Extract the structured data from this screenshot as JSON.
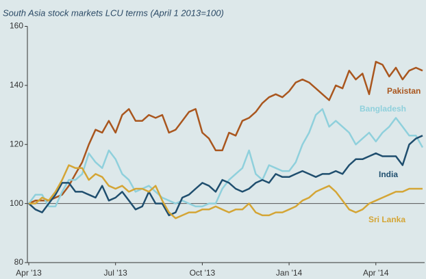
{
  "chart_data": {
    "type": "line",
    "title": "South Asia stock markets LCU terms (April 1 2013=100)",
    "categories": [
      "Apr '13",
      null,
      null,
      null,
      null,
      null,
      null,
      null,
      null,
      null,
      null,
      null,
      null,
      "Jul '13",
      null,
      null,
      null,
      null,
      null,
      null,
      null,
      null,
      null,
      null,
      null,
      null,
      "Oct '13",
      null,
      null,
      null,
      null,
      null,
      null,
      null,
      null,
      null,
      null,
      null,
      null,
      "Jan '14",
      null,
      null,
      null,
      null,
      null,
      null,
      null,
      null,
      null,
      null,
      null,
      null,
      "Apr '14",
      null,
      null,
      null,
      null,
      null,
      null,
      null
    ],
    "ylim": [
      80,
      160
    ],
    "yticks": [
      80,
      100,
      120,
      140,
      160
    ],
    "reference_line": 100,
    "series": [
      {
        "name": "Pakistan",
        "color": "#a9561e",
        "values": [
          100,
          101,
          101,
          101,
          102,
          103,
          106,
          110,
          114,
          120,
          125,
          124,
          128,
          124,
          130,
          132,
          128,
          128,
          130,
          129,
          130,
          124,
          125,
          128,
          131,
          132,
          124,
          122,
          118,
          118,
          124,
          123,
          128,
          129,
          131,
          134,
          136,
          137,
          136,
          138,
          141,
          142,
          141,
          139,
          137,
          135,
          140,
          139,
          145,
          142,
          144,
          137,
          148,
          147,
          143,
          146,
          142,
          145,
          146,
          145
        ]
      },
      {
        "name": "Bangladesh",
        "color": "#8fd0dc",
        "values": [
          100,
          103,
          103,
          99,
          99,
          104,
          108,
          108,
          110,
          117,
          114,
          112,
          118,
          115,
          110,
          108,
          104,
          105,
          106,
          104,
          102,
          101,
          100,
          101,
          100,
          99,
          99,
          100,
          100,
          105,
          108,
          110,
          112,
          118,
          110,
          108,
          113,
          112,
          111,
          111,
          114,
          120,
          124,
          130,
          132,
          126,
          128,
          126,
          124,
          120,
          122,
          124,
          121,
          124,
          126,
          129,
          126,
          123,
          123,
          119
        ]
      },
      {
        "name": "India",
        "color": "#1f4e6e",
        "values": [
          100,
          98,
          97,
          100,
          103,
          107,
          107,
          104,
          104,
          103,
          102,
          106,
          101,
          102,
          104,
          101,
          98,
          99,
          104,
          100,
          100,
          96,
          97,
          102,
          103,
          105,
          107,
          106,
          104,
          108,
          107,
          105,
          104,
          105,
          107,
          108,
          107,
          110,
          109,
          109,
          110,
          111,
          110,
          109,
          110,
          110,
          111,
          110,
          113,
          115,
          115,
          116,
          117,
          116,
          116,
          116,
          113,
          120,
          122,
          123
        ]
      },
      {
        "name": "Sri Lanka",
        "color": "#d4a535",
        "values": [
          100,
          100,
          102,
          101,
          104,
          108,
          113,
          112,
          112,
          108,
          110,
          109,
          106,
          105,
          106,
          104,
          105,
          105,
          104,
          106,
          101,
          97,
          95,
          96,
          97,
          97,
          98,
          98,
          99,
          98,
          97,
          98,
          98,
          100,
          97,
          96,
          96,
          97,
          97,
          98,
          99,
          101,
          102,
          104,
          105,
          106,
          104,
          101,
          98,
          97,
          98,
          100,
          101,
          102,
          103,
          104,
          104,
          105,
          105,
          105
        ]
      }
    ]
  }
}
